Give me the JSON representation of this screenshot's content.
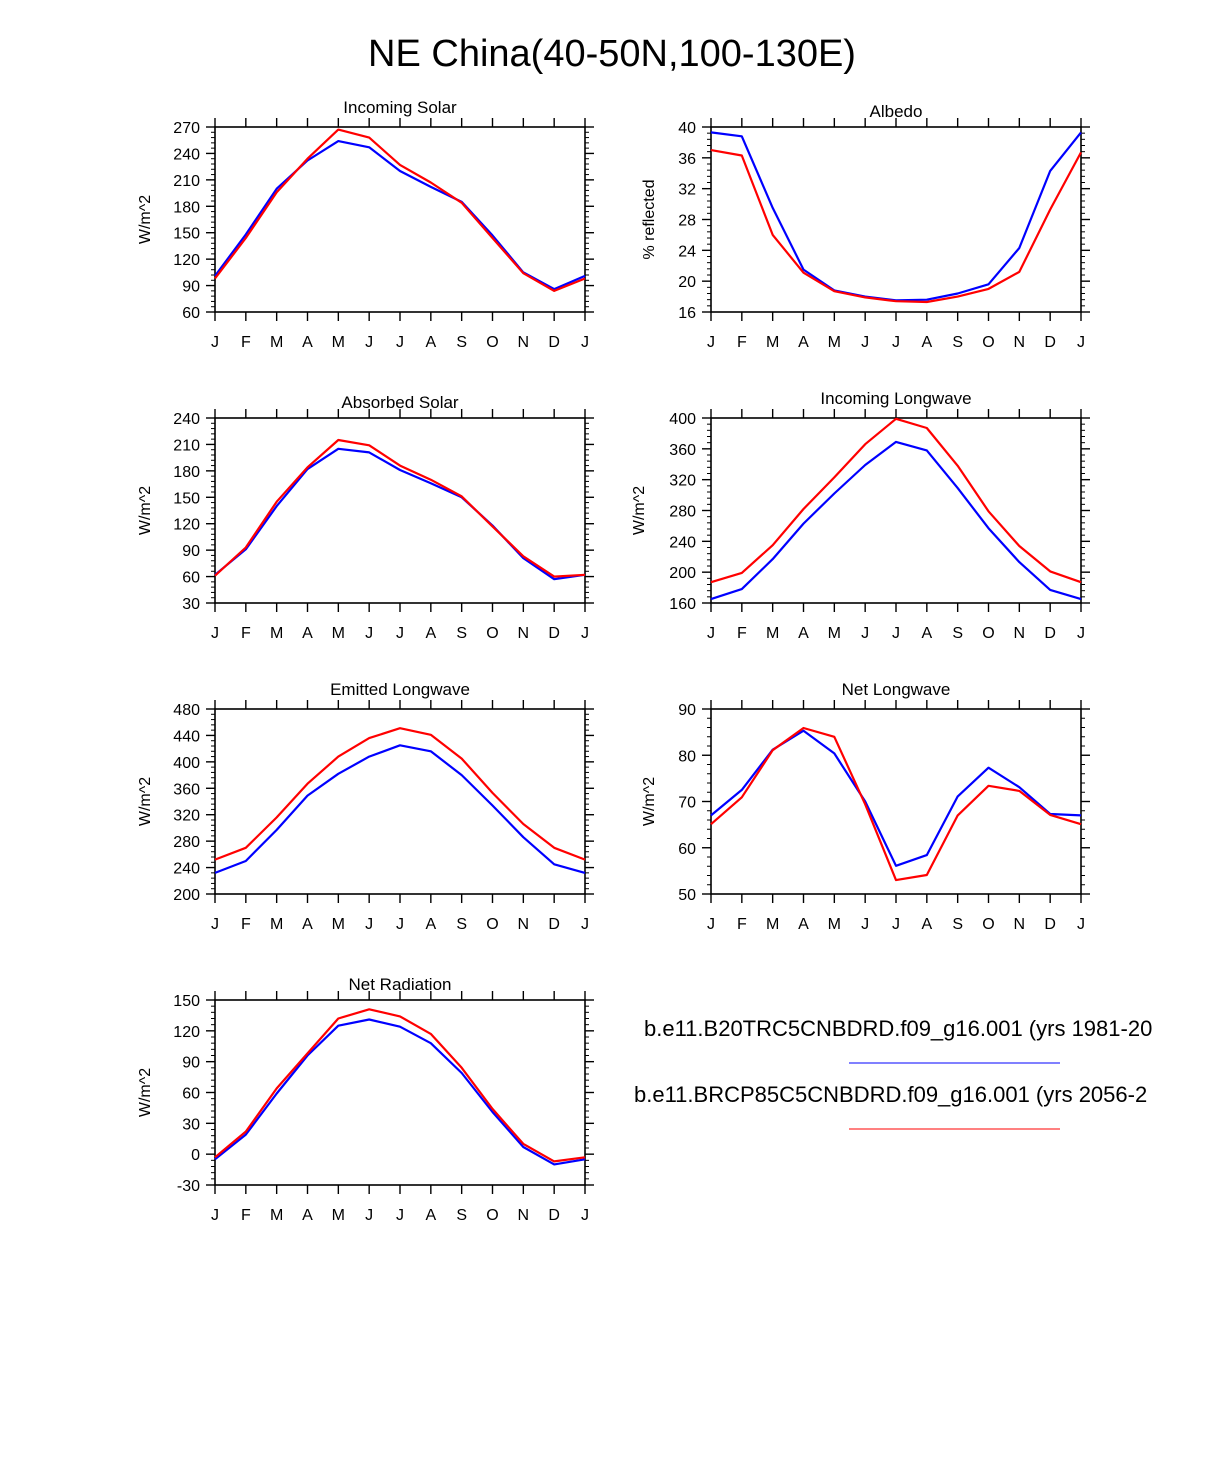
{
  "figure_title": "NE China(40-50N,100-130E)",
  "colors": {
    "series_1": "#0000ff",
    "series_2": "#ff0000",
    "axis": "#000000"
  },
  "legend": [
    {
      "label": "b.e11.B20TRC5CNBDRD.f09_g16.001 (yrs 1981-20",
      "color": "#0000ff"
    },
    {
      "label": "b.e11.BRCP85C5CNBDRD.f09_g16.001 (yrs 2056-2",
      "color": "#ff0000"
    }
  ],
  "chart_data": [
    {
      "type": "line",
      "title": "Incoming Solar",
      "ylabel": "W/m^2",
      "categories": [
        "J",
        "F",
        "M",
        "A",
        "M",
        "J",
        "J",
        "A",
        "S",
        "O",
        "N",
        "D",
        "J"
      ],
      "ylim": [
        60,
        270
      ],
      "yticks": [
        60,
        90,
        120,
        150,
        180,
        210,
        240,
        270
      ],
      "series": [
        {
          "name": "b.e11.B20TRC5CNBDRD.f09_g16.001",
          "color": "#0000ff",
          "values": [
            101,
            148,
            200,
            232,
            254,
            247,
            220,
            202,
            185,
            147,
            105,
            86,
            101
          ]
        },
        {
          "name": "b.e11.BRCP85C5CNBDRD.f09_g16.001",
          "color": "#ff0000",
          "values": [
            98,
            144,
            196,
            234,
            267,
            258,
            227,
            207,
            184,
            144,
            104,
            84,
            98
          ]
        }
      ]
    },
    {
      "type": "line",
      "title": "Albedo",
      "ylabel": "% reflected",
      "categories": [
        "J",
        "F",
        "M",
        "A",
        "M",
        "J",
        "J",
        "A",
        "S",
        "O",
        "N",
        "D",
        "J"
      ],
      "ylim": [
        16,
        40
      ],
      "yticks": [
        16,
        20,
        24,
        28,
        32,
        36,
        40
      ],
      "series": [
        {
          "name": "b.e11.B20TRC5CNBDRD.f09_g16.001",
          "color": "#0000ff",
          "values": [
            39.3,
            38.8,
            29.5,
            21.5,
            18.8,
            18.0,
            17.5,
            17.6,
            18.4,
            19.6,
            24.3,
            34.3,
            39.3
          ]
        },
        {
          "name": "b.e11.BRCP85C5CNBDRD.f09_g16.001",
          "color": "#ff0000",
          "values": [
            37.0,
            36.3,
            26.0,
            21.1,
            18.7,
            17.9,
            17.4,
            17.3,
            18.0,
            19.0,
            21.2,
            29.3,
            36.7
          ]
        }
      ]
    },
    {
      "type": "line",
      "title": "Absorbed Solar",
      "ylabel": "W/m^2",
      "categories": [
        "J",
        "F",
        "M",
        "A",
        "M",
        "J",
        "J",
        "A",
        "S",
        "O",
        "N",
        "D",
        "J"
      ],
      "ylim": [
        30,
        240
      ],
      "yticks": [
        30,
        60,
        90,
        120,
        150,
        180,
        210,
        240
      ],
      "series": [
        {
          "name": "b.e11.B20TRC5CNBDRD.f09_g16.001",
          "color": "#0000ff",
          "values": [
            62,
            91,
            140,
            182,
            205,
            201,
            181,
            166,
            150,
            118,
            81,
            57,
            62
          ]
        },
        {
          "name": "b.e11.BRCP85C5CNBDRD.f09_g16.001",
          "color": "#ff0000",
          "values": [
            61,
            93,
            145,
            184,
            215,
            209,
            186,
            170,
            151,
            117,
            83,
            60,
            62
          ]
        }
      ]
    },
    {
      "type": "line",
      "title": "Incoming Longwave",
      "ylabel": "W/m^2",
      "categories": [
        "J",
        "F",
        "M",
        "A",
        "M",
        "J",
        "J",
        "A",
        "S",
        "O",
        "N",
        "D",
        "J"
      ],
      "ylim": [
        160,
        400
      ],
      "yticks": [
        160,
        200,
        240,
        280,
        320,
        360,
        400
      ],
      "series": [
        {
          "name": "b.e11.B20TRC5CNBDRD.f09_g16.001",
          "color": "#0000ff",
          "values": [
            165,
            178,
            217,
            263,
            302,
            339,
            369,
            358,
            309,
            257,
            213,
            177,
            165
          ]
        },
        {
          "name": "b.e11.BRCP85C5CNBDRD.f09_g16.001",
          "color": "#ff0000",
          "values": [
            187,
            199,
            235,
            282,
            323,
            366,
            399,
            387,
            338,
            279,
            234,
            201,
            187
          ]
        }
      ]
    },
    {
      "type": "line",
      "title": "Emitted Longwave",
      "ylabel": "W/m^2",
      "categories": [
        "J",
        "F",
        "M",
        "A",
        "M",
        "J",
        "J",
        "A",
        "S",
        "O",
        "N",
        "D",
        "J"
      ],
      "ylim": [
        200,
        480
      ],
      "yticks": [
        200,
        240,
        280,
        320,
        360,
        400,
        440,
        480
      ],
      "series": [
        {
          "name": "b.e11.B20TRC5CNBDRD.f09_g16.001",
          "color": "#0000ff",
          "values": [
            232,
            250,
            297,
            349,
            382,
            408,
            425,
            416,
            380,
            334,
            286,
            245,
            232
          ]
        },
        {
          "name": "b.e11.BRCP85C5CNBDRD.f09_g16.001",
          "color": "#ff0000",
          "values": [
            252,
            270,
            316,
            367,
            408,
            436,
            451,
            441,
            405,
            353,
            306,
            270,
            252
          ]
        }
      ]
    },
    {
      "type": "line",
      "title": "Net Longwave",
      "ylabel": "W/m^2",
      "categories": [
        "J",
        "F",
        "M",
        "A",
        "M",
        "J",
        "J",
        "A",
        "S",
        "O",
        "N",
        "D",
        "J"
      ],
      "ylim": [
        50,
        90
      ],
      "yticks": [
        50,
        60,
        70,
        80,
        90
      ],
      "series": [
        {
          "name": "b.e11.B20TRC5CNBDRD.f09_g16.001",
          "color": "#0000ff",
          "values": [
            67.0,
            72.5,
            81.2,
            85.3,
            80.4,
            70.0,
            56.1,
            58.4,
            71.1,
            77.3,
            73.1,
            67.3,
            67.0
          ]
        },
        {
          "name": "b.e11.BRCP85C5CNBDRD.f09_g16.001",
          "color": "#ff0000",
          "values": [
            65.1,
            70.9,
            81.1,
            85.9,
            84.0,
            69.4,
            53.0,
            54.1,
            67.0,
            73.4,
            72.3,
            67.1,
            65.1
          ]
        }
      ]
    },
    {
      "type": "line",
      "title": "Net Radiation",
      "ylabel": "W/m^2",
      "categories": [
        "J",
        "F",
        "M",
        "A",
        "M",
        "J",
        "J",
        "A",
        "S",
        "O",
        "N",
        "D",
        "J"
      ],
      "ylim": [
        -30,
        150
      ],
      "yticks": [
        -30,
        0,
        30,
        60,
        90,
        120,
        150
      ],
      "series": [
        {
          "name": "b.e11.B20TRC5CNBDRD.f09_g16.001",
          "color": "#0000ff",
          "values": [
            -5,
            19,
            59,
            96,
            125,
            131,
            124,
            108,
            79,
            41,
            7,
            -10,
            -5
          ]
        },
        {
          "name": "b.e11.BRCP85C5CNBDRD.f09_g16.001",
          "color": "#ff0000",
          "values": [
            -3,
            22,
            64,
            98,
            132,
            141,
            134,
            117,
            84,
            44,
            10,
            -7,
            -3
          ]
        }
      ]
    }
  ]
}
